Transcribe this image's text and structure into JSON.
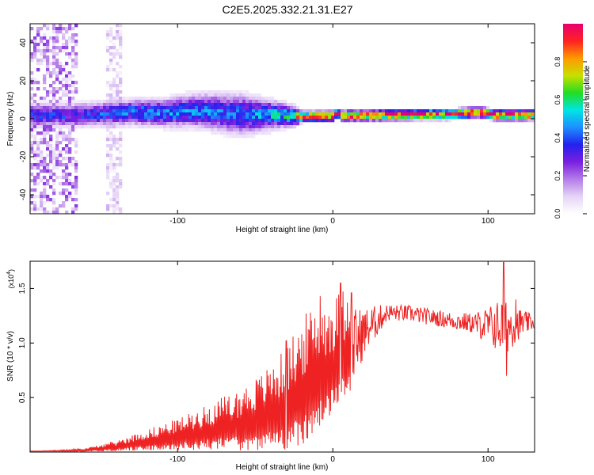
{
  "title": "C2E5.2025.332.21.31.E27",
  "colors": {
    "snr_line": "#ee2222",
    "axis": "#000000",
    "colormap": [
      "#ffffff",
      "#e6d4f7",
      "#b47ce8",
      "#7a1fe0",
      "#2222ee",
      "#1e90ff",
      "#00e5e5",
      "#22dd22",
      "#c8e000",
      "#ff9900",
      "#ff2222",
      "#e8006e"
    ]
  },
  "chart_data": [
    {
      "type": "heatmap",
      "name": "spectrogram",
      "xlabel": "Height of straight line (km)",
      "ylabel": "Frequency (Hz)",
      "xlim": [
        -195,
        130
      ],
      "ylim": [
        -50,
        50
      ],
      "xticks": [
        -100,
        0,
        100
      ],
      "yticks": [
        -40,
        -20,
        0,
        20,
        40
      ],
      "colorbar": {
        "label": "Normalized spectral amplitude",
        "range": [
          0,
          1
        ],
        "ticks": [
          "0.0",
          "0.2",
          "0.4",
          "0.6",
          "0.8"
        ],
        "tick_values": [
          0,
          0.2,
          0.4,
          0.6,
          0.8
        ]
      },
      "ridge": [
        {
          "x": -165,
          "f": 2.0
        },
        {
          "x": -150,
          "f": 2.5
        },
        {
          "x": -130,
          "f": 3.5
        },
        {
          "x": -110,
          "f": 3.0
        },
        {
          "x": -95,
          "f": 4.0
        },
        {
          "x": -80,
          "f": 4.0
        },
        {
          "x": -65,
          "f": 2.5
        },
        {
          "x": -50,
          "f": 2.0
        },
        {
          "x": -35,
          "f": 2.0
        },
        {
          "x": -22,
          "f": 1.0
        },
        {
          "x": 0,
          "f": 1.5
        },
        {
          "x": 3,
          "f": 3.0
        },
        {
          "x": 6,
          "f": 1.5
        },
        {
          "x": 40,
          "f": 2.0
        },
        {
          "x": 80,
          "f": 2.5
        },
        {
          "x": 95,
          "f": 3.5
        },
        {
          "x": 105,
          "f": 2.0
        },
        {
          "x": 130,
          "f": 2.0
        }
      ],
      "ridge_amplitude": [
        {
          "x": -165,
          "a": 0.35
        },
        {
          "x": -110,
          "a": 0.45
        },
        {
          "x": -60,
          "a": 0.4
        },
        {
          "x": -25,
          "a": 0.55
        },
        {
          "x": -20,
          "a": 0.9
        },
        {
          "x": 130,
          "a": 0.95
        }
      ],
      "ridge_width_hz": [
        {
          "x": -165,
          "w": 3.5
        },
        {
          "x": -110,
          "w": 4.0
        },
        {
          "x": -60,
          "w": 6.0
        },
        {
          "x": -25,
          "w": 3.0
        },
        {
          "x": -20,
          "w": 1.5
        },
        {
          "x": 130,
          "w": 1.5
        }
      ],
      "noise_regions": [
        {
          "x": [
            -195,
            -165
          ],
          "f": [
            -50,
            50
          ],
          "amplitude": 0.15
        },
        {
          "x": [
            -145,
            -135
          ],
          "f": [
            -50,
            50
          ],
          "amplitude": 0.08
        }
      ]
    },
    {
      "type": "line",
      "name": "snr",
      "xlabel": "Height of straight line (km)",
      "ylabel": "SNR (10 * v/v)",
      "scale_label": "(x10",
      "scale_exponent": "4",
      "scale_suffix": ")",
      "xlim": [
        -195,
        130
      ],
      "ylim": [
        0,
        17500
      ],
      "xticks": [
        -100,
        0,
        100
      ],
      "yticks": [
        5000,
        10000,
        15000
      ],
      "ytick_labels": [
        "0.5",
        "1.0",
        "1.5"
      ],
      "envelope": [
        {
          "x": -195,
          "mean": 50,
          "noise": 0.3
        },
        {
          "x": -160,
          "mean": 150,
          "noise": 0.8
        },
        {
          "x": -140,
          "mean": 450,
          "noise": 0.8
        },
        {
          "x": -120,
          "mean": 900,
          "noise": 0.8
        },
        {
          "x": -100,
          "mean": 1300,
          "noise": 0.85
        },
        {
          "x": -80,
          "mean": 1800,
          "noise": 0.9
        },
        {
          "x": -60,
          "mean": 2300,
          "noise": 0.95
        },
        {
          "x": -45,
          "mean": 2900,
          "noise": 0.95
        },
        {
          "x": -30,
          "mean": 3800,
          "noise": 0.95
        },
        {
          "x": -20,
          "mean": 5000,
          "noise": 0.9
        },
        {
          "x": -10,
          "mean": 6500,
          "noise": 0.7
        },
        {
          "x": 0,
          "mean": 7500,
          "noise": 0.55
        },
        {
          "x": 10,
          "mean": 9000,
          "noise": 0.45
        },
        {
          "x": 20,
          "mean": 11000,
          "noise": 0.2
        },
        {
          "x": 35,
          "mean": 12800,
          "noise": 0.06
        },
        {
          "x": 50,
          "mean": 12700,
          "noise": 0.06
        },
        {
          "x": 70,
          "mean": 12200,
          "noise": 0.06
        },
        {
          "x": 90,
          "mean": 11800,
          "noise": 0.08
        },
        {
          "x": 100,
          "mean": 11600,
          "noise": 0.15
        },
        {
          "x": 110,
          "mean": 11500,
          "noise": 0.25
        },
        {
          "x": 120,
          "mean": 11800,
          "noise": 0.12
        },
        {
          "x": 130,
          "mean": 11900,
          "noise": 0.05
        }
      ],
      "peaks": [
        {
          "x": 5,
          "y": 15500
        },
        {
          "x": 12,
          "y": 14600
        },
        {
          "x": -30,
          "y": 10200
        },
        {
          "x": -15,
          "y": 11200
        },
        {
          "x": -8,
          "y": 14300
        },
        {
          "x": 110,
          "y": 17400
        },
        {
          "x": 112,
          "y": 7000
        },
        {
          "x": 118,
          "y": 14000
        }
      ]
    }
  ]
}
